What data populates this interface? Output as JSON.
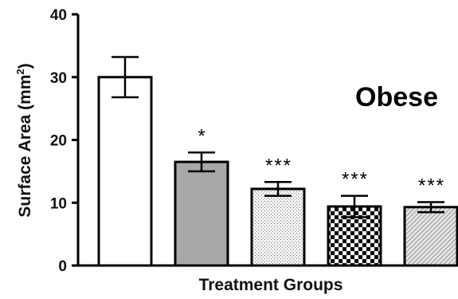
{
  "chart_data": {
    "type": "bar",
    "title": "",
    "xlabel": "Treatment Groups",
    "ylabel": "Surface Area (mm²)",
    "ylabel_main": "Surface Area (mm",
    "ylabel_sup": "2",
    "ylabel_close": ")",
    "annotation": "Obese",
    "ylim": [
      0,
      40
    ],
    "yticks": [
      0,
      10,
      20,
      30,
      40
    ],
    "ytick_labels": [
      "0",
      "10",
      "20",
      "30",
      "40"
    ],
    "grid": false,
    "categories": [
      "",
      "",
      "",
      "",
      ""
    ],
    "values": [
      30,
      16.5,
      12.2,
      9.4,
      9.3
    ],
    "errors": [
      3.2,
      1.5,
      1.1,
      1.7,
      0.8
    ],
    "significance": [
      "",
      "*",
      "***",
      "***",
      "***"
    ],
    "bar_styles": [
      {
        "fill": "#ffffff",
        "pattern": "none"
      },
      {
        "fill": "#a8a8a8",
        "pattern": "none"
      },
      {
        "fill": "#ececec",
        "pattern": "stipple"
      },
      {
        "fill": "#ffffff",
        "pattern": "checker"
      },
      {
        "fill": "#d8d8d8",
        "pattern": "diagonal"
      }
    ]
  }
}
